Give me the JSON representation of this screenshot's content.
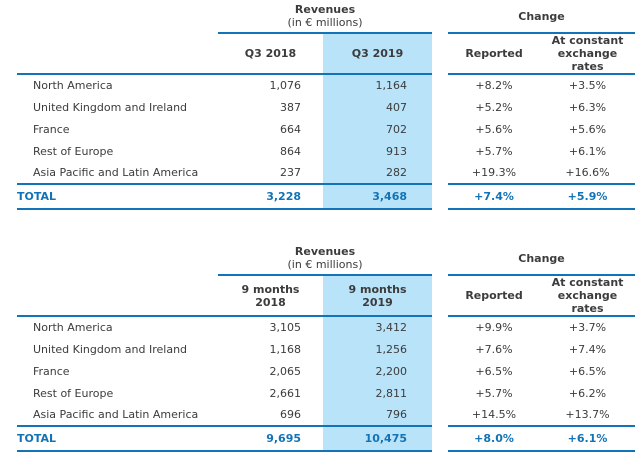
{
  "colors": {
    "accent_blue": "#1273b6",
    "highlight_blue": "#b9e3f9",
    "text": "#3c3c3c"
  },
  "tables": [
    {
      "revenues_title": "Revenues",
      "revenues_subtitle": "(in € millions)",
      "change_title": "Change",
      "headers": {
        "prev": "Q3 2018",
        "curr": "Q3 2019",
        "reported": "Reported",
        "constant": "At constant\nexchange\nrates"
      },
      "rows": [
        {
          "label": "North America",
          "prev": "1,076",
          "curr": "1,164",
          "reported": "+8.2%",
          "constant": "+3.5%"
        },
        {
          "label": "United Kingdom and Ireland",
          "prev": "387",
          "curr": "407",
          "reported": "+5.2%",
          "constant": "+6.3%"
        },
        {
          "label": "France",
          "prev": "664",
          "curr": "702",
          "reported": "+5.6%",
          "constant": "+5.6%"
        },
        {
          "label": "Rest of Europe",
          "prev": "864",
          "curr": "913",
          "reported": "+5.7%",
          "constant": "+6.1%"
        },
        {
          "label": "Asia Pacific and Latin America",
          "prev": "237",
          "curr": "282",
          "reported": "+19.3%",
          "constant": "+16.6%"
        }
      ],
      "total": {
        "label": "TOTAL",
        "prev": "3,228",
        "curr": "3,468",
        "reported": "+7.4%",
        "constant": "+5.9%"
      }
    },
    {
      "revenues_title": "Revenues",
      "revenues_subtitle": "(in € millions)",
      "change_title": "Change",
      "headers": {
        "prev": "9 months\n2018",
        "curr": "9 months\n2019",
        "reported": "Reported",
        "constant": "At constant\nexchange\nrates"
      },
      "rows": [
        {
          "label": "North America",
          "prev": "3,105",
          "curr": "3,412",
          "reported": "+9.9%",
          "constant": "+3.7%"
        },
        {
          "label": "United Kingdom and Ireland",
          "prev": "1,168",
          "curr": "1,256",
          "reported": "+7.6%",
          "constant": "+7.4%"
        },
        {
          "label": "France",
          "prev": "2,065",
          "curr": "2,200",
          "reported": "+6.5%",
          "constant": "+6.5%"
        },
        {
          "label": "Rest of Europe",
          "prev": "2,661",
          "curr": "2,811",
          "reported": "+5.7%",
          "constant": "+6.2%"
        },
        {
          "label": "Asia Pacific and Latin America",
          "prev": "696",
          "curr": "796",
          "reported": "+14.5%",
          "constant": "+13.7%"
        }
      ],
      "total": {
        "label": "TOTAL",
        "prev": "9,695",
        "curr": "10,475",
        "reported": "+8.0%",
        "constant": "+6.1%"
      }
    }
  ]
}
